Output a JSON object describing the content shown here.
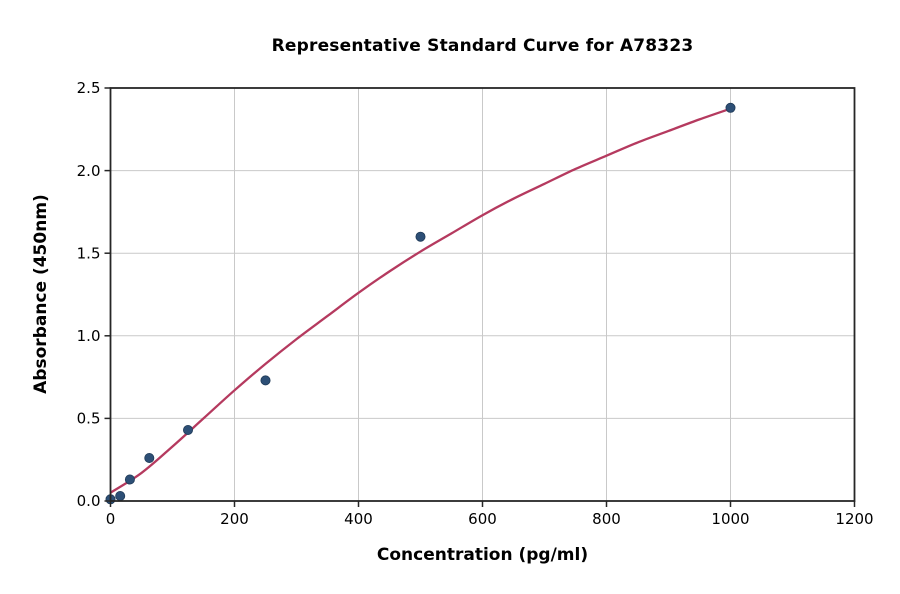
{
  "chart_data": {
    "type": "scatter",
    "title": "Representative Standard Curve for A78323",
    "xlabel": "Concentration (pg/ml)",
    "ylabel": "Absorbance (450nm)",
    "xlim": [
      0,
      1200
    ],
    "ylim": [
      0,
      2.5
    ],
    "x_ticks": [
      0,
      200,
      400,
      600,
      800,
      1000,
      1200
    ],
    "x_tick_labels": [
      "0",
      "200",
      "400",
      "600",
      "800",
      "1000",
      "1200"
    ],
    "y_ticks": [
      0,
      0.5,
      1.0,
      1.5,
      2.0,
      2.5
    ],
    "y_tick_labels": [
      "0.0",
      "0.5",
      "1.0",
      "1.5",
      "2.0",
      "2.5"
    ],
    "grid": true,
    "legend_position": "none",
    "axis_color": "#262626",
    "grid_color": "#c9c9c9",
    "text_color": "#000000",
    "series": [
      {
        "name": "standard-points",
        "type": "scatter",
        "color": "#2d4f76",
        "edge_color": "#1f3a57",
        "points": [
          [
            0,
            0.01
          ],
          [
            15.6,
            0.03
          ],
          [
            31.25,
            0.13
          ],
          [
            62.5,
            0.26
          ],
          [
            125,
            0.43
          ],
          [
            250,
            0.73
          ],
          [
            500,
            1.6
          ],
          [
            1000,
            2.38
          ]
        ]
      },
      {
        "name": "fitted-curve",
        "type": "line",
        "color": "#b53a5f",
        "points": [
          [
            0,
            0.05
          ],
          [
            50,
            0.17
          ],
          [
            100,
            0.33
          ],
          [
            150,
            0.5
          ],
          [
            200,
            0.67
          ],
          [
            250,
            0.83
          ],
          [
            300,
            0.98
          ],
          [
            350,
            1.12
          ],
          [
            400,
            1.26
          ],
          [
            450,
            1.39
          ],
          [
            500,
            1.51
          ],
          [
            550,
            1.62
          ],
          [
            600,
            1.73
          ],
          [
            650,
            1.83
          ],
          [
            700,
            1.92
          ],
          [
            750,
            2.01
          ],
          [
            800,
            2.09
          ],
          [
            850,
            2.17
          ],
          [
            900,
            2.24
          ],
          [
            950,
            2.31
          ],
          [
            1000,
            2.375
          ]
        ]
      }
    ]
  }
}
